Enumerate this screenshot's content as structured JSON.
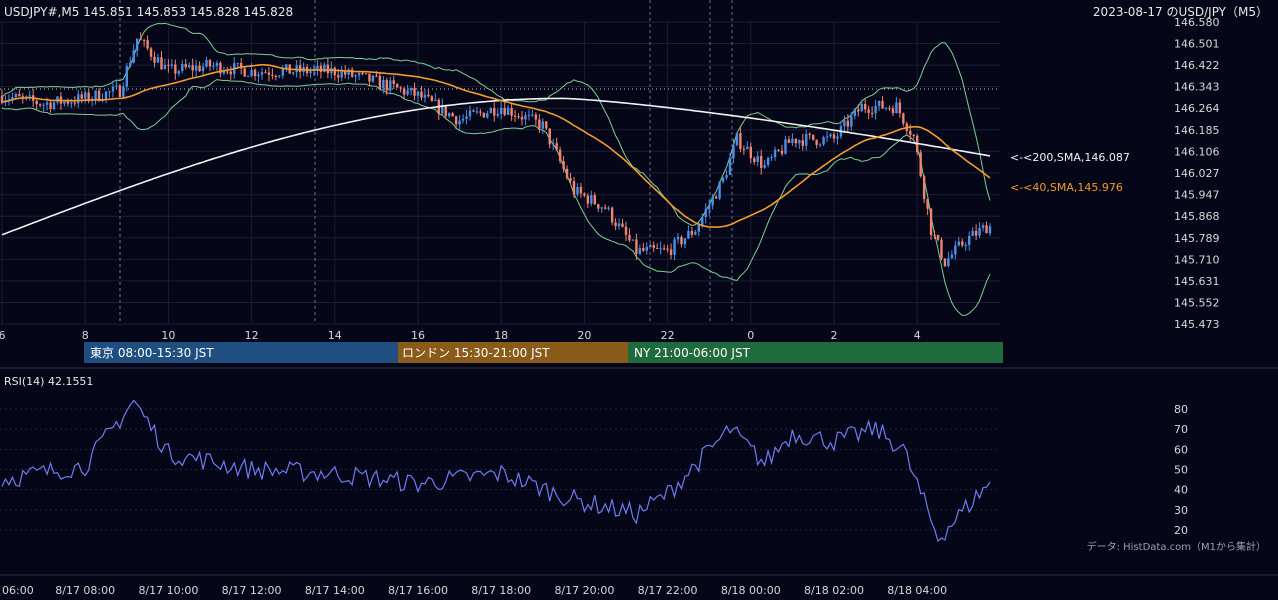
{
  "header": {
    "symbol_info": "USDJPY#,M5 145.851 145.853 145.828 145.828",
    "title_right": "2023-08-17 のUSD/JPY（M5）"
  },
  "colors": {
    "background": "#050618",
    "grid": "#2a2d4a",
    "candle_up": "#4a8fe8",
    "candle_down": "#f0846f",
    "sma200": "#f2f2f2",
    "sma40": "#f39a2e",
    "bollinger": "#7fcf8f",
    "rsi": "#6f7cf0",
    "session_tokyo": "#1f4f80",
    "session_london": "#8a5a18",
    "session_ny": "#1f6b3d"
  },
  "price_axis": {
    "ticks": [
      "146.580",
      "146.501",
      "146.422",
      "146.343",
      "146.264",
      "146.185",
      "146.106",
      "146.027",
      "145.947",
      "145.868",
      "145.789",
      "145.710",
      "145.631",
      "145.552",
      "145.473"
    ]
  },
  "hour_axis": {
    "ticks": [
      "6",
      "8",
      "10",
      "12",
      "14",
      "16",
      "18",
      "20",
      "22",
      "0",
      "2",
      "4"
    ]
  },
  "labels": {
    "sma200": "<-<200,SMA,146.087",
    "sma40": "<-<40,SMA,145.976"
  },
  "sessions": [
    {
      "label": "東京 08:00-15:30 JST"
    },
    {
      "label": "ロンドン 15:30-21:00 JST"
    },
    {
      "label": "NY 21:00-06:00 JST"
    }
  ],
  "rsi": {
    "title": "RSI(14) 42.1551",
    "ticks": [
      "80",
      "70",
      "60",
      "50",
      "40",
      "30",
      "20"
    ]
  },
  "credit": "データ: HistData.com（M1から集計）",
  "time_axis": {
    "ticks": [
      "06:00",
      "8/17 08:00",
      "8/17 10:00",
      "8/17 12:00",
      "8/17 14:00",
      "8/17 16:00",
      "8/17 18:00",
      "8/17 20:00",
      "8/17 22:00",
      "8/18 00:00",
      "8/18 02:00",
      "8/18 04:00"
    ]
  },
  "chart_data": {
    "type": "candlestick",
    "timeframe": "M5",
    "ylim": [
      145.473,
      146.58
    ],
    "series": [
      {
        "name": "200,SMA",
        "last": 146.087
      },
      {
        "name": "40,SMA",
        "last": 145.976
      }
    ],
    "price_path": [
      [
        "8/17 06:00",
        146.31
      ],
      [
        "8/17 07:00",
        146.28
      ],
      [
        "8/17 08:00",
        146.3
      ],
      [
        "8/17 08:50",
        146.33
      ],
      [
        "8/17 09:15",
        146.52
      ],
      [
        "8/17 10:00",
        146.4
      ],
      [
        "8/17 11:00",
        146.42
      ],
      [
        "8/17 12:00",
        146.4
      ],
      [
        "8/17 13:00",
        146.4
      ],
      [
        "8/17 14:00",
        146.4
      ],
      [
        "8/17 15:00",
        146.36
      ],
      [
        "8/17 16:00",
        146.31
      ],
      [
        "8/17 17:00",
        146.22
      ],
      [
        "8/17 18:00",
        146.27
      ],
      [
        "8/17 19:00",
        146.2
      ],
      [
        "8/17 19:45",
        145.96
      ],
      [
        "8/17 20:30",
        145.9
      ],
      [
        "8/17 21:15",
        145.74
      ],
      [
        "8/17 22:00",
        145.74
      ],
      [
        "8/17 22:40",
        145.82
      ],
      [
        "8/17 23:20",
        146.0
      ],
      [
        "8/17 23:40",
        146.15
      ],
      [
        "8/18 00:20",
        146.05
      ],
      [
        "8/18 01:00",
        146.15
      ],
      [
        "8/18 02:00",
        146.15
      ],
      [
        "8/18 02:40",
        146.27
      ],
      [
        "8/18 03:30",
        146.27
      ],
      [
        "8/18 03:55",
        146.16
      ],
      [
        "8/18 04:20",
        145.82
      ],
      [
        "8/18 04:40",
        145.7
      ],
      [
        "8/18 05:10",
        145.78
      ],
      [
        "8/18 05:40",
        145.83
      ]
    ],
    "rsi_path": [
      [
        "8/17 06:00",
        45
      ],
      [
        "8/17 08:00",
        52
      ],
      [
        "8/17 09:10",
        84
      ],
      [
        "8/17 10:00",
        58
      ],
      [
        "8/17 12:00",
        50
      ],
      [
        "8/17 14:00",
        48
      ],
      [
        "8/17 16:00",
        43
      ],
      [
        "8/17 18:00",
        48
      ],
      [
        "8/17 19:45",
        35
      ],
      [
        "8/17 21:15",
        28
      ],
      [
        "8/17 22:00",
        38
      ],
      [
        "8/17 23:30",
        70
      ],
      [
        "8/18 00:20",
        53
      ],
      [
        "8/18 01:00",
        68
      ],
      [
        "8/18 02:00",
        64
      ],
      [
        "8/18 03:00",
        70
      ],
      [
        "8/18 03:40",
        60
      ],
      [
        "8/18 04:30",
        16
      ],
      [
        "8/18 05:40",
        42
      ]
    ]
  }
}
